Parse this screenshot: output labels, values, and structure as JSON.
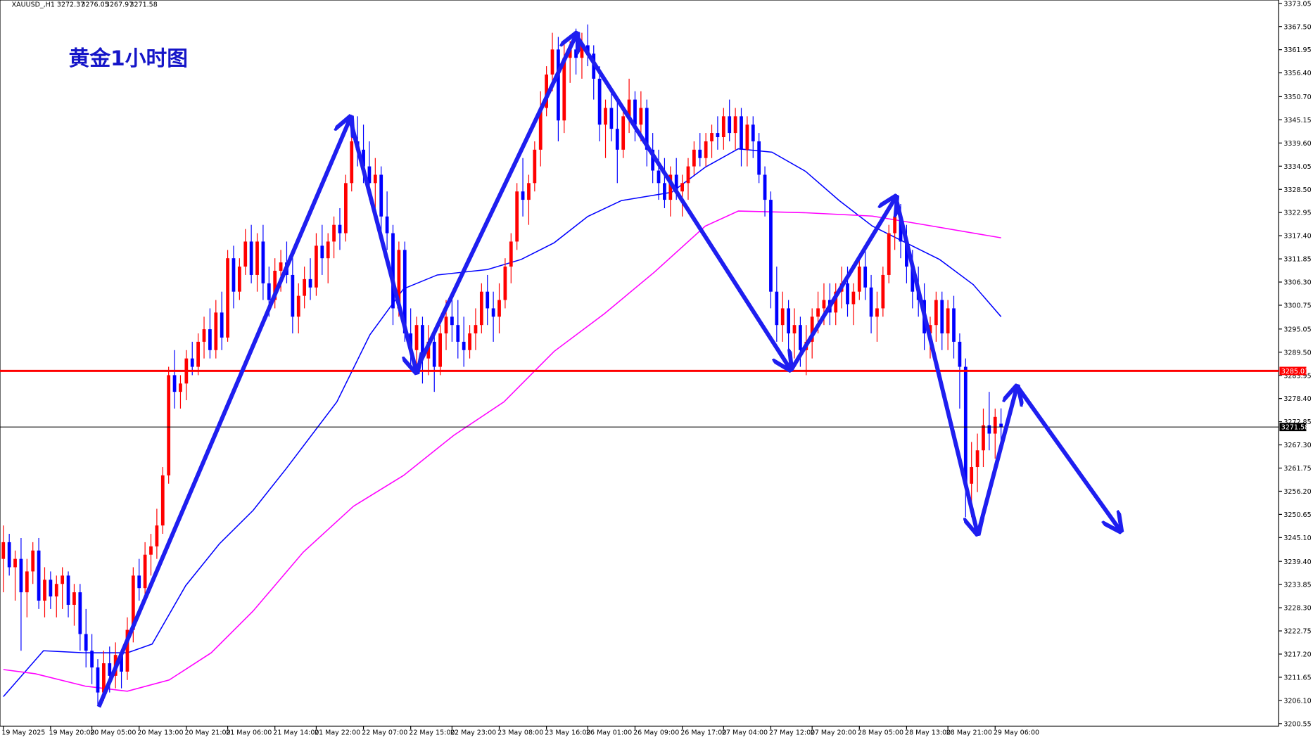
{
  "chart_data": {
    "type": "candlestick",
    "title": "黄金1小时图",
    "symbol": "XAUUSD_,H1",
    "up_color": "#ff0000",
    "down_color": "#0000ff",
    "ylim": [
      3199.95,
      3373.85
    ],
    "yticks": [
      3373.05,
      {
        "value": 3367.5,
        "label": "3367.50"
      },
      3361.95,
      {
        "value": 3356.4,
        "label": "3356.40"
      },
      {
        "value": 3350.7,
        "label": "3350.70"
      },
      3345.15,
      {
        "value": 3339.6,
        "label": "3339.60"
      },
      3334.05,
      {
        "value": 3328.5,
        "label": "3328.50"
      },
      3322.95,
      {
        "value": 3317.4,
        "label": "3317.40"
      },
      3311.85,
      {
        "value": 3306.3,
        "label": "3306.30"
      },
      3300.75,
      3295.05,
      {
        "value": 3289.5,
        "label": "3289.50"
      },
      3283.95,
      {
        "value": 3278.4,
        "label": "3278.40"
      },
      3272.85,
      {
        "value": 3267.3,
        "label": "3267.30"
      },
      3261.75,
      {
        "value": 3256.2,
        "label": "3256.20"
      },
      3250.65,
      {
        "value": 3245.1,
        "label": "3245.10"
      },
      {
        "value": 3239.4,
        "label": "3239.40"
      },
      3233.85,
      {
        "value": 3228.3,
        "label": "3228.30"
      },
      3222.75,
      {
        "value": 3217.2,
        "label": "3217.20"
      },
      3211.65,
      {
        "value": 3206.1,
        "label": "3206.10"
      },
      3200.55
    ],
    "hlines": [
      {
        "value": 3285.01,
        "color": "#ff0000"
      },
      {
        "value": 3271.58,
        "color": "#000000"
      }
    ],
    "categories": [
      "19 May 2025",
      null,
      null,
      null,
      null,
      null,
      null,
      null,
      "19 May 20:00",
      null,
      null,
      null,
      null,
      null,
      null,
      "20 May 05:00",
      null,
      null,
      null,
      null,
      null,
      null,
      null,
      "20 May 13:00",
      null,
      null,
      null,
      null,
      null,
      null,
      null,
      "20 May 21:00",
      null,
      null,
      null,
      null,
      null,
      null,
      "21 May 06:00",
      null,
      null,
      null,
      null,
      null,
      null,
      null,
      "21 May 14:00",
      null,
      null,
      null,
      null,
      null,
      null,
      "21 May 22:00",
      null,
      null,
      null,
      null,
      null,
      null,
      null,
      "22 May 07:00",
      null,
      null,
      null,
      null,
      null,
      null,
      null,
      "22 May 15:00",
      null,
      null,
      null,
      null,
      null,
      null,
      "22 May 23:00",
      null,
      null,
      null,
      null,
      null,
      null,
      null,
      "23 May 08:00",
      null,
      null,
      null,
      null,
      null,
      null,
      null,
      "23 May 16:00",
      null,
      null,
      null,
      null,
      null,
      null,
      "26 May 01:00",
      null,
      null,
      null,
      null,
      null,
      null,
      null,
      "26 May 09:00",
      null,
      null,
      null,
      null,
      null,
      null,
      null,
      "26 May 17:00",
      null,
      null,
      null,
      null,
      null,
      null,
      "27 May 04:00",
      null,
      null,
      null,
      null,
      null,
      null,
      null,
      "27 May 12:00",
      null,
      null,
      null,
      null,
      null,
      null,
      "27 May 20:00",
      null,
      null,
      null,
      null,
      null,
      null,
      null,
      "28 May 05:00",
      null,
      null,
      null,
      null,
      null,
      null,
      null,
      "28 May 13:00",
      null,
      null,
      null,
      null,
      null,
      null,
      "28 May 21:00",
      null,
      null,
      null,
      null,
      null,
      null,
      null,
      "29 May 06:00",
      null
    ],
    "ohlc": [
      [
        3240,
        3248,
        3232,
        3244
      ],
      [
        3244,
        3246,
        3236,
        3238
      ],
      [
        3238,
        3242,
        3230,
        3240
      ],
      [
        3240,
        3245,
        3218,
        3232
      ],
      [
        3232,
        3240,
        3226,
        3237
      ],
      [
        3237,
        3244,
        3234,
        3242
      ],
      [
        3242,
        3245,
        3228,
        3230
      ],
      [
        3230,
        3238,
        3226,
        3235
      ],
      [
        3235,
        3237,
        3228,
        3231
      ],
      [
        3231,
        3236,
        3226,
        3234
      ],
      [
        3234,
        3238,
        3228,
        3236
      ],
      [
        3236,
        3237,
        3226,
        3229
      ],
      [
        3229,
        3234,
        3224,
        3232
      ],
      [
        3232,
        3234,
        3218,
        3222
      ],
      [
        3222,
        3228,
        3214,
        3218
      ],
      [
        3218,
        3222,
        3210,
        3214
      ],
      [
        3214,
        3216,
        3205,
        3208
      ],
      [
        3208,
        3218,
        3206,
        3215
      ],
      [
        3215,
        3219,
        3208,
        3212
      ],
      [
        3212,
        3220,
        3209,
        3217
      ],
      [
        3217,
        3218,
        3209,
        3213
      ],
      [
        3213,
        3226,
        3211,
        3223
      ],
      [
        3223,
        3238,
        3220,
        3236
      ],
      [
        3236,
        3240,
        3230,
        3233
      ],
      [
        3233,
        3244,
        3231,
        3241
      ],
      [
        3241,
        3246,
        3236,
        3243
      ],
      [
        3243,
        3252,
        3240,
        3248
      ],
      [
        3248,
        3262,
        3246,
        3260
      ],
      [
        3260,
        3286,
        3258,
        3284
      ],
      [
        3284,
        3290,
        3276,
        3280
      ],
      [
        3280,
        3284,
        3276,
        3282
      ],
      [
        3282,
        3290,
        3278,
        3288
      ],
      [
        3288,
        3292,
        3284,
        3286
      ],
      [
        3286,
        3294,
        3284,
        3292
      ],
      [
        3292,
        3298,
        3288,
        3295
      ],
      [
        3295,
        3300,
        3288,
        3290
      ],
      [
        3290,
        3302,
        3288,
        3299
      ],
      [
        3299,
        3304,
        3290,
        3293
      ],
      [
        3293,
        3314,
        3292,
        3312
      ],
      [
        3312,
        3315,
        3300,
        3304
      ],
      [
        3304,
        3312,
        3302,
        3310
      ],
      [
        3310,
        3319,
        3308,
        3316
      ],
      [
        3316,
        3320,
        3306,
        3308
      ],
      [
        3308,
        3318,
        3304,
        3316
      ],
      [
        3316,
        3320,
        3302,
        3306
      ],
      [
        3306,
        3310,
        3298,
        3302
      ],
      [
        3302,
        3312,
        3300,
        3309
      ],
      [
        3309,
        3314,
        3304,
        3311
      ],
      [
        3311,
        3316,
        3306,
        3308
      ],
      [
        3308,
        3312,
        3294,
        3298
      ],
      [
        3298,
        3306,
        3294,
        3303
      ],
      [
        3303,
        3310,
        3300,
        3307
      ],
      [
        3307,
        3312,
        3302,
        3305
      ],
      [
        3305,
        3318,
        3303,
        3315
      ],
      [
        3315,
        3320,
        3308,
        3312
      ],
      [
        3312,
        3318,
        3306,
        3316
      ],
      [
        3316,
        3322,
        3312,
        3320
      ],
      [
        3320,
        3324,
        3314,
        3318
      ],
      [
        3318,
        3332,
        3316,
        3330
      ],
      [
        3330,
        3342,
        3328,
        3340
      ],
      [
        3340,
        3346,
        3334,
        3338
      ],
      [
        3338,
        3344,
        3330,
        3334
      ],
      [
        3334,
        3340,
        3326,
        3330
      ],
      [
        3330,
        3336,
        3324,
        3332
      ],
      [
        3332,
        3334,
        3318,
        3322
      ],
      [
        3322,
        3328,
        3314,
        3318
      ],
      [
        3318,
        3320,
        3296,
        3300
      ],
      [
        3300,
        3316,
        3298,
        3314
      ],
      [
        3314,
        3316,
        3292,
        3294
      ],
      [
        3294,
        3300,
        3286,
        3290
      ],
      [
        3290,
        3298,
        3286,
        3296
      ],
      [
        3296,
        3298,
        3282,
        3288
      ],
      [
        3288,
        3296,
        3284,
        3292
      ],
      [
        3292,
        3294,
        3280,
        3286
      ],
      [
        3286,
        3296,
        3284,
        3294
      ],
      [
        3294,
        3302,
        3290,
        3298
      ],
      [
        3298,
        3304,
        3292,
        3296
      ],
      [
        3296,
        3302,
        3288,
        3292
      ],
      [
        3292,
        3298,
        3286,
        3290
      ],
      [
        3290,
        3296,
        3288,
        3294
      ],
      [
        3294,
        3300,
        3290,
        3296
      ],
      [
        3296,
        3306,
        3294,
        3304
      ],
      [
        3304,
        3308,
        3296,
        3300
      ],
      [
        3300,
        3304,
        3292,
        3298
      ],
      [
        3298,
        3306,
        3294,
        3302
      ],
      [
        3302,
        3312,
        3300,
        3310
      ],
      [
        3310,
        3318,
        3306,
        3316
      ],
      [
        3316,
        3330,
        3314,
        3328
      ],
      [
        3328,
        3336,
        3322,
        3326
      ],
      [
        3326,
        3332,
        3320,
        3330
      ],
      [
        3330,
        3340,
        3328,
        3338
      ],
      [
        3338,
        3352,
        3334,
        3348
      ],
      [
        3348,
        3358,
        3346,
        3356
      ],
      [
        3356,
        3366,
        3352,
        3362
      ],
      [
        3362,
        3365,
        3340,
        3345
      ],
      [
        3345,
        3364,
        3342,
        3360
      ],
      [
        3360,
        3364,
        3354,
        3362
      ],
      [
        3362,
        3367,
        3356,
        3360
      ],
      [
        3360,
        3366,
        3355,
        3363
      ],
      [
        3363,
        3368,
        3358,
        3361
      ],
      [
        3361,
        3363,
        3350,
        3355
      ],
      [
        3355,
        3358,
        3340,
        3344
      ],
      [
        3344,
        3350,
        3336,
        3348
      ],
      [
        3348,
        3352,
        3340,
        3343
      ],
      [
        3343,
        3350,
        3330,
        3338
      ],
      [
        3338,
        3348,
        3336,
        3346
      ],
      [
        3346,
        3355,
        3342,
        3350
      ],
      [
        3350,
        3352,
        3340,
        3344
      ],
      [
        3344,
        3352,
        3340,
        3348
      ],
      [
        3348,
        3350,
        3334,
        3338
      ],
      [
        3338,
        3342,
        3330,
        3333
      ],
      [
        3333,
        3338,
        3326,
        3330
      ],
      [
        3330,
        3336,
        3324,
        3326
      ],
      [
        3326,
        3334,
        3322,
        3332
      ],
      [
        3332,
        3336,
        3326,
        3328
      ],
      [
        3328,
        3332,
        3322,
        3330
      ],
      [
        3330,
        3336,
        3326,
        3334
      ],
      [
        3334,
        3340,
        3332,
        3338
      ],
      [
        3338,
        3342,
        3334,
        3336
      ],
      [
        3336,
        3342,
        3334,
        3340
      ],
      [
        3340,
        3344,
        3336,
        3342
      ],
      [
        3342,
        3346,
        3338,
        3341
      ],
      [
        3341,
        3348,
        3338,
        3346
      ],
      [
        3346,
        3350,
        3340,
        3342
      ],
      [
        3342,
        3348,
        3338,
        3346
      ],
      [
        3346,
        3348,
        3334,
        3338
      ],
      [
        3338,
        3346,
        3334,
        3344
      ],
      [
        3344,
        3346,
        3336,
        3340
      ],
      [
        3340,
        3342,
        3330,
        3332
      ],
      [
        3332,
        3334,
        3322,
        3326
      ],
      [
        3326,
        3328,
        3300,
        3304
      ],
      [
        3304,
        3310,
        3292,
        3296
      ],
      [
        3296,
        3304,
        3292,
        3300
      ],
      [
        3300,
        3302,
        3290,
        3294
      ],
      [
        3294,
        3300,
        3288,
        3296
      ],
      [
        3296,
        3298,
        3286,
        3290
      ],
      [
        3290,
        3296,
        3284,
        3292
      ],
      [
        3292,
        3300,
        3288,
        3298
      ],
      [
        3298,
        3304,
        3294,
        3300
      ],
      [
        3300,
        3306,
        3296,
        3302
      ],
      [
        3302,
        3306,
        3296,
        3299
      ],
      [
        3299,
        3306,
        3296,
        3304
      ],
      [
        3304,
        3310,
        3300,
        3306
      ],
      [
        3306,
        3310,
        3298,
        3301
      ],
      [
        3301,
        3306,
        3296,
        3304
      ],
      [
        3304,
        3312,
        3302,
        3310
      ],
      [
        3310,
        3314,
        3302,
        3305
      ],
      [
        3305,
        3308,
        3294,
        3298
      ],
      [
        3298,
        3304,
        3292,
        3300
      ],
      [
        3300,
        3310,
        3298,
        3308
      ],
      [
        3308,
        3320,
        3306,
        3318
      ],
      [
        3318,
        3324,
        3314,
        3322
      ],
      [
        3322,
        3325,
        3312,
        3316
      ],
      [
        3316,
        3320,
        3306,
        3310
      ],
      [
        3310,
        3314,
        3300,
        3304
      ],
      [
        3304,
        3310,
        3298,
        3302
      ],
      [
        3302,
        3306,
        3290,
        3294
      ],
      [
        3294,
        3298,
        3288,
        3296
      ],
      [
        3296,
        3304,
        3292,
        3302
      ],
      [
        3302,
        3304,
        3290,
        3294
      ],
      [
        3294,
        3302,
        3290,
        3300
      ],
      [
        3300,
        3303,
        3288,
        3292
      ],
      [
        3292,
        3294,
        3276,
        3286
      ],
      [
        3286,
        3288,
        3250,
        3258
      ],
      [
        3258,
        3268,
        3250,
        3262
      ],
      [
        3262,
        3270,
        3256,
        3266
      ],
      [
        3266,
        3276,
        3262,
        3272
      ],
      [
        3272,
        3280,
        3266,
        3270
      ],
      [
        3270,
        3276,
        3264,
        3274
      ],
      [
        3272.37,
        3276.05,
        3267.97,
        3271.58
      ]
    ],
    "mas": [
      {
        "color": "#0000ff",
        "x": [
          0,
          6.8,
          13.9,
          21,
          25.2,
          30.9,
          36.6,
          42.3,
          47.9,
          56.5,
          62.1,
          67.8,
          73.5,
          82,
          87.7,
          93.3,
          99,
          104.7,
          113.2,
          118.9,
          124.5,
          130.2,
          135.9,
          141.6,
          147.2,
          152.9,
          158.6,
          164.3,
          169
        ],
        "values": [
          3207,
          3218,
          3217.5,
          3217.5,
          3219.6,
          3233.6,
          3243.6,
          3251.6,
          3261.6,
          3277.6,
          3293.7,
          3304.7,
          3308,
          3309.3,
          3311.7,
          3315.7,
          3322,
          3325.8,
          3327.8,
          3333.8,
          3338.2,
          3337.4,
          3332.8,
          3325.8,
          3319.7,
          3315.7,
          3311.7,
          3305.7,
          3298
        ]
      },
      {
        "color": "#ff00ff",
        "x": [
          0,
          5.4,
          13.9,
          21,
          28.1,
          35.2,
          42.3,
          50.8,
          59.3,
          67.8,
          76.3,
          84.8,
          93.3,
          101.8,
          110.3,
          118.9,
          124.5,
          135.9,
          147.2,
          155.7,
          169
        ],
        "values": [
          3213.5,
          3212.5,
          3209.5,
          3208.3,
          3211,
          3217.5,
          3227.5,
          3241.6,
          3252.6,
          3260,
          3269.6,
          3277.6,
          3289.7,
          3298.7,
          3308.7,
          3319.7,
          3323.3,
          3322.9,
          3322.1,
          3320.1,
          3316.9
        ]
      }
    ]
  }
}
